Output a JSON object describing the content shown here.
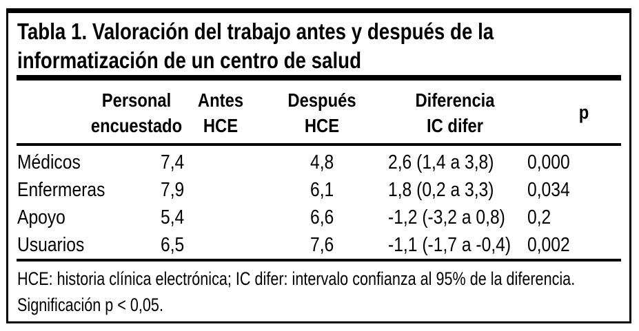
{
  "title_lines": [
    "Tabla 1. Valoración del trabajo antes y después de la",
    "informatización de un centro de salud"
  ],
  "table": {
    "headers": [
      {
        "line1": "Personal",
        "line2": "encuestado"
      },
      {
        "line1": "Antes",
        "line2": "HCE"
      },
      {
        "line1": "Después",
        "line2": "HCE"
      },
      {
        "line1": "Diferencia",
        "line2": "IC difer"
      },
      {
        "line1": "p",
        "line2": ""
      }
    ],
    "rows": [
      {
        "personal": "Médicos",
        "antes": "7,4",
        "despues": "4,8",
        "diferencia": "2,6 (1,4 a 3,8)",
        "p": "0,000"
      },
      {
        "personal": "Enfermeras",
        "antes": "7,9",
        "despues": "6,1",
        "diferencia": "1,8 (0,2 a 3,3)",
        "p": "0,034"
      },
      {
        "personal": "Apoyo",
        "antes": "5,4",
        "despues": "6,6",
        "diferencia": "-1,2 (-3,2 a 0,8)",
        "p": "0,2"
      },
      {
        "personal": "Usuarios",
        "antes": "6,5",
        "despues": "7,6",
        "diferencia": "-1,1 (-1,7 a -0,4)",
        "p": "0,002"
      }
    ]
  },
  "footnote_lines": [
    "HCE: historia clínica electrónica; IC difer: intervalo confianza al 95% de la diferencia.",
    "Significación p < 0,05."
  ],
  "colors": {
    "text": "#000000",
    "rule": "#000000",
    "background": "#ffffff"
  }
}
